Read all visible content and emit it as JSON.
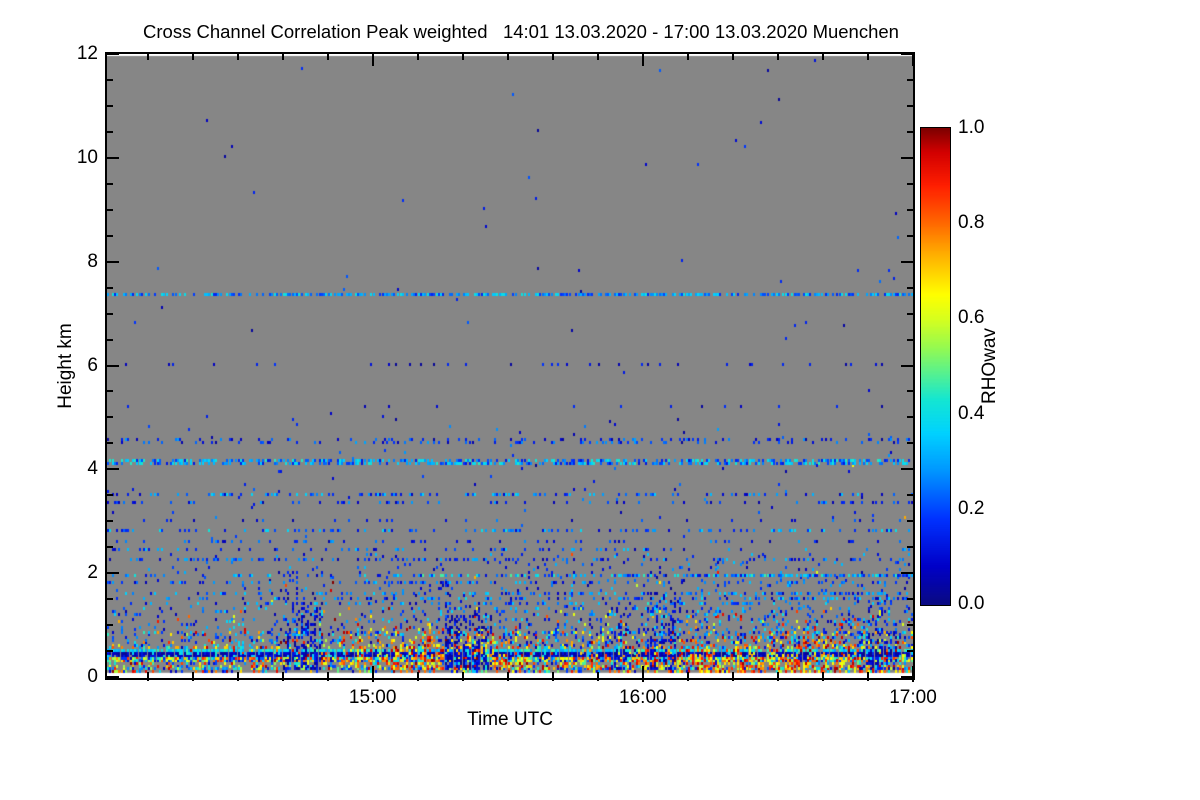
{
  "title": "Cross Channel Correlation Peak weighted   14:01 13.03.2020 - 17:00 13.03.2020 Muenchen",
  "axes": {
    "x": {
      "label": "Time UTC",
      "start_clock": "14:01",
      "end_clock": "17:00",
      "total_minutes": 179,
      "start_clock_minute_of_day": 841,
      "minor_tick_clock_step_min": 10,
      "major_ticks": [
        {
          "label": "15:00",
          "minutes": 59
        },
        {
          "label": "16:00",
          "minutes": 119
        },
        {
          "label": "17:00",
          "minutes": 179
        }
      ]
    },
    "y": {
      "label": "Height km",
      "min": 0,
      "max": 12,
      "minor_step_km": 0.5,
      "major_ticks": [
        {
          "label": "0",
          "km": 0
        },
        {
          "label": "2",
          "km": 2
        },
        {
          "label": "4",
          "km": 4
        },
        {
          "label": "6",
          "km": 6
        },
        {
          "label": "8",
          "km": 8
        },
        {
          "label": "10",
          "km": 10
        },
        {
          "label": "12",
          "km": 12
        }
      ]
    }
  },
  "colorbar": {
    "label": "RHOwav",
    "min": 0.0,
    "max": 1.0,
    "minor_divisions_per_major": 3,
    "ticks": [
      {
        "label": "1.0",
        "value": 1.0
      },
      {
        "label": "0.8",
        "value": 0.8
      },
      {
        "label": "0.6",
        "value": 0.6
      },
      {
        "label": "0.4",
        "value": 0.4
      },
      {
        "label": "0.2",
        "value": 0.2
      },
      {
        "label": "0.0",
        "value": 0.0
      }
    ]
  },
  "chart_data": {
    "type": "heatmap",
    "title": "Cross Channel Correlation Peak weighted",
    "site": "Muenchen",
    "date": "13.03.2020",
    "time_start_utc": "14:01",
    "time_end_utc": "17:00",
    "duration_minutes": 179,
    "xlabel": "Time UTC",
    "ylabel": "Height km",
    "height_range_km": [
      0,
      12
    ],
    "value_name": "RHOwav",
    "value_range": [
      0.0,
      1.0
    ],
    "no_data_color": "#868686",
    "min_data_height_km": 0.1,
    "cell_minutes": 0.5,
    "cell_km": 0.05,
    "seed": 1303,
    "warm_value_range": [
      0.55,
      1.0
    ],
    "colormap_stops": [
      [
        0.0,
        "#0a0a82"
      ],
      [
        0.08,
        "#0000c8"
      ],
      [
        0.18,
        "#0032ff"
      ],
      [
        0.28,
        "#0096ff"
      ],
      [
        0.36,
        "#00d2ff"
      ],
      [
        0.43,
        "#14e6d2"
      ],
      [
        0.48,
        "#50f096"
      ],
      [
        0.54,
        "#96fa50"
      ],
      [
        0.6,
        "#d7ff1e"
      ],
      [
        0.65,
        "#ffff00"
      ],
      [
        0.73,
        "#ffb400"
      ],
      [
        0.8,
        "#ff6900"
      ],
      [
        0.88,
        "#ff1e00"
      ],
      [
        0.95,
        "#d20000"
      ],
      [
        1.0,
        "#7d0000"
      ]
    ],
    "generative_features": {
      "speckle_layers": [
        {
          "h0": 5.0,
          "h1": 11.9,
          "d": 0.0009,
          "v": [
            0.02,
            0.25
          ]
        },
        {
          "h0": 2.35,
          "h1": 5.0,
          "d": 0.006,
          "v": [
            0.02,
            0.3
          ],
          "warm": 0.02
        },
        {
          "h0": 1.3,
          "h1": 2.35,
          "d": 0.045,
          "v": [
            0.03,
            0.35
          ],
          "warm": 0.03,
          "ramp": 0.7
        },
        {
          "h0": 0.85,
          "h1": 1.3,
          "d": 0.15,
          "v": [
            0.03,
            0.4
          ],
          "warm": 0.12,
          "ramp": 0.5
        },
        {
          "h0": 0.58,
          "h1": 0.85,
          "d": 0.3,
          "v": [
            0.04,
            0.45
          ],
          "warm": 0.28,
          "ramp": 0.3
        },
        {
          "h0": 0.3,
          "h1": 0.58,
          "d": 0.42,
          "v": [
            0.05,
            0.5
          ],
          "warm": 0.42
        },
        {
          "h0": 0.1,
          "h1": 0.3,
          "d": 0.35,
          "v": [
            0.05,
            0.55
          ],
          "warm": 0.4
        }
      ],
      "streak_lines": [
        {
          "h": 7.35,
          "th": 0.05,
          "d": 0.7,
          "v": [
            0.15,
            0.42
          ]
        },
        {
          "h": 6.0,
          "th": 0.05,
          "d": 0.1,
          "v": [
            0.02,
            0.18
          ]
        },
        {
          "h": 5.2,
          "th": 0.05,
          "d": 0.03,
          "v": [
            0.02,
            0.18
          ]
        },
        {
          "h": 4.52,
          "th": 0.08,
          "d": 0.22,
          "v": [
            0.03,
            0.3
          ]
        },
        {
          "h": 4.12,
          "th": 0.08,
          "d": 0.6,
          "v": [
            0.12,
            0.45
          ]
        },
        {
          "h": 3.52,
          "th": 0.06,
          "d": 0.3,
          "v": [
            0.05,
            0.38
          ]
        },
        {
          "h": 3.37,
          "th": 0.05,
          "d": 0.2,
          "v": [
            0.03,
            0.3
          ]
        },
        {
          "h": 3.0,
          "th": 0.05,
          "d": 0.1,
          "v": [
            0.03,
            0.3
          ]
        },
        {
          "h": 2.82,
          "th": 0.07,
          "d": 0.32,
          "v": [
            0.08,
            0.42
          ]
        },
        {
          "h": 2.6,
          "th": 0.05,
          "d": 0.15,
          "v": [
            0.03,
            0.3
          ]
        },
        {
          "h": 2.45,
          "th": 0.05,
          "d": 0.22,
          "v": [
            0.05,
            0.35
          ]
        },
        {
          "h": 2.25,
          "th": 0.05,
          "d": 0.25,
          "v": [
            0.03,
            0.32
          ]
        },
        {
          "h": 1.95,
          "th": 0.06,
          "d": 0.45,
          "v": [
            0.1,
            0.48
          ],
          "ramp": 0.8
        },
        {
          "h": 1.82,
          "th": 0.05,
          "d": 0.25,
          "v": [
            0.05,
            0.35
          ]
        },
        {
          "h": 1.62,
          "th": 0.05,
          "d": 0.3,
          "v": [
            0.03,
            0.38
          ],
          "ramp": 0.5
        },
        {
          "h": 1.5,
          "th": 0.05,
          "d": 0.3,
          "v": [
            0.05,
            0.4
          ],
          "ramp": 0.5
        },
        {
          "h": 1.38,
          "th": 0.05,
          "d": 0.28,
          "v": [
            0.05,
            0.4
          ]
        },
        {
          "h": 0.52,
          "th": 0.06,
          "d": 0.85,
          "v": [
            0.28,
            0.48
          ]
        },
        {
          "h": 0.41,
          "th": 0.09,
          "d": 0.95,
          "v": [
            0.0,
            0.13
          ],
          "alt": {
            "p": 0.15,
            "v": [
              0.3,
              0.45
            ]
          }
        },
        {
          "h": 0.28,
          "th": 0.08,
          "d": 0.9,
          "v": [
            0.05,
            0.9
          ]
        },
        {
          "h": 0.16,
          "th": 0.05,
          "d": 0.45,
          "v": [
            0.1,
            0.6
          ]
        }
      ],
      "warm_patches": [
        {
          "t0": 35,
          "t1": 52,
          "h0": 0.12,
          "h1": 0.65,
          "d": 0.3
        },
        {
          "t0": 52,
          "t1": 95,
          "h0": 0.12,
          "h1": 1.05,
          "d": 0.5
        },
        {
          "t0": 95,
          "t1": 112,
          "h0": 0.12,
          "h1": 0.6,
          "d": 0.25
        },
        {
          "t0": 104,
          "t1": 179,
          "h0": 0.1,
          "h1": 0.8,
          "d": 0.45
        },
        {
          "t0": 150,
          "t1": 176,
          "h0": 0.6,
          "h1": 1.15,
          "d": 0.18
        }
      ],
      "cold_plumes": [
        {
          "t": 43,
          "w": 9,
          "top": 2.25,
          "d": 0.5,
          "v": [
            0.0,
            0.16
          ]
        },
        {
          "t": 80,
          "w": 10,
          "top": 1.75,
          "d": 0.8,
          "v": [
            0.0,
            0.16
          ]
        },
        {
          "t": 114,
          "w": 4,
          "top": 1.55,
          "d": 0.45,
          "v": [
            0.0,
            0.16
          ]
        },
        {
          "t": 123,
          "w": 6,
          "top": 2.3,
          "d": 0.5,
          "v": [
            0.0,
            0.16
          ]
        },
        {
          "t": 171,
          "w": 8,
          "top": 1.65,
          "d": 0.55,
          "v": [
            0.0,
            0.16
          ]
        }
      ]
    }
  }
}
